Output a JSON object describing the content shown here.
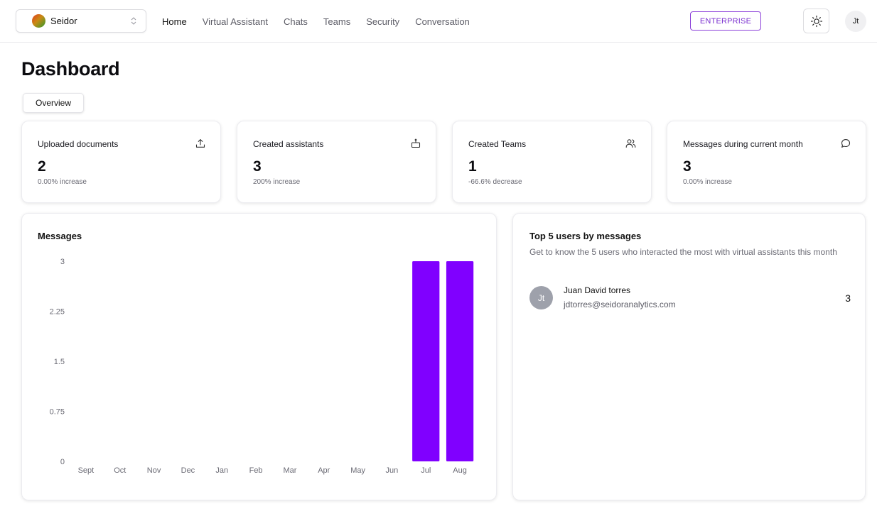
{
  "header": {
    "org": "Seidor",
    "nav": [
      "Home",
      "Virtual Assistant",
      "Chats",
      "Teams",
      "Security",
      "Conversation"
    ],
    "plan_badge": "ENTERPRISE",
    "user_initials": "Jt"
  },
  "page": {
    "title": "Dashboard",
    "tab": "Overview"
  },
  "stats": [
    {
      "label": "Uploaded documents",
      "value": "2",
      "sub": "0.00% increase",
      "icon": "upload-icon"
    },
    {
      "label": "Created assistants",
      "value": "3",
      "sub": "200% increase",
      "icon": "bot-icon"
    },
    {
      "label": "Created Teams",
      "value": "1",
      "sub": "-66.6% decrease",
      "icon": "users-icon"
    },
    {
      "label": "Messages during current month",
      "value": "3",
      "sub": "0.00% increase",
      "icon": "message-icon"
    }
  ],
  "chart_data": {
    "type": "bar",
    "title": "Messages",
    "categories": [
      "Sept",
      "Oct",
      "Nov",
      "Dec",
      "Jan",
      "Feb",
      "Mar",
      "Apr",
      "May",
      "Jun",
      "Jul",
      "Aug"
    ],
    "values": [
      0,
      0,
      0,
      0,
      0,
      0,
      0,
      0,
      0,
      0,
      3,
      3
    ],
    "yticks": [
      "0",
      "0.75",
      "1.5",
      "2.25",
      "3"
    ],
    "ylim": [
      0,
      3
    ],
    "grid": false,
    "bar_color": "#8000ff"
  },
  "top_users": {
    "title": "Top 5 users by messages",
    "description": "Get to know the 5 users who interacted the most with virtual assistants this month",
    "users": [
      {
        "initials": "Jt",
        "name": "Juan David torres",
        "email": "jdtorres@seidoranalytics.com",
        "count": "3"
      }
    ]
  },
  "colors": {
    "accent": "#7a2fd0",
    "bar": "#8000ff"
  }
}
